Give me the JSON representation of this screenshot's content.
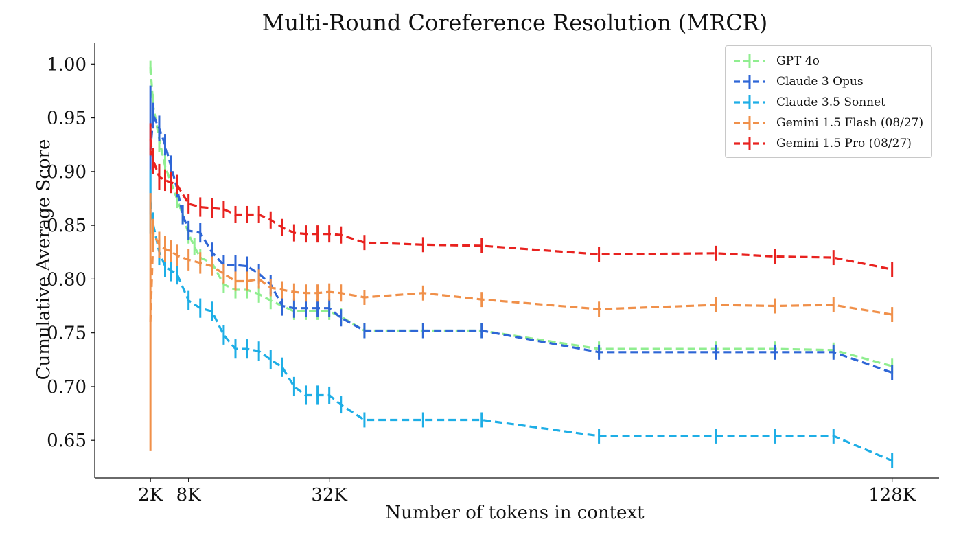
{
  "chart_data": {
    "type": "line",
    "title": "Multi-Round Coreference Resolution (MRCR)",
    "xlabel": "Number of tokens in context",
    "ylabel": "Cumulative Average Score",
    "xlim": [
      -8,
      136
    ],
    "ylim": [
      0.615,
      1.02
    ],
    "xticks": [
      {
        "value": 1.5,
        "label": "2K"
      },
      {
        "value": 8,
        "label": "8K"
      },
      {
        "value": 32,
        "label": "32K"
      },
      {
        "value": 128,
        "label": "128K"
      }
    ],
    "yticks": [
      {
        "value": 0.65,
        "label": "0.65"
      },
      {
        "value": 0.7,
        "label": "0.70"
      },
      {
        "value": 0.75,
        "label": "0.75"
      },
      {
        "value": 0.8,
        "label": "0.80"
      },
      {
        "value": 0.85,
        "label": "0.85"
      },
      {
        "value": 0.9,
        "label": "0.90"
      },
      {
        "value": 0.95,
        "label": "0.95"
      },
      {
        "value": 1.0,
        "label": "1.00"
      }
    ],
    "legend_position": "top-right",
    "series": [
      {
        "name": "GPT 4o",
        "color": "#90ee90",
        "x": [
          1.5,
          2,
          3,
          4,
          5,
          6,
          7,
          8,
          9,
          10,
          12,
          14,
          16,
          18,
          20,
          22,
          24,
          26,
          28,
          30,
          32,
          34,
          38,
          48,
          58,
          78,
          98,
          108,
          118,
          128
        ],
        "y": [
          0.997,
          0.96,
          0.93,
          0.905,
          0.89,
          0.875,
          0.86,
          0.842,
          0.83,
          0.82,
          0.815,
          0.795,
          0.79,
          0.79,
          0.786,
          0.78,
          0.775,
          0.77,
          0.77,
          0.77,
          0.77,
          0.765,
          0.752,
          0.752,
          0.752,
          0.735,
          0.735,
          0.735,
          0.734,
          0.719
        ],
        "err": [
          0.006,
          0.012,
          0.012,
          0.01,
          0.01,
          0.009,
          0.009,
          0.009,
          0.008,
          0.008,
          0.008,
          0.008,
          0.008,
          0.008,
          0.008,
          0.008,
          0.008,
          0.008,
          0.008,
          0.008,
          0.008,
          0.008,
          0.007,
          0.007,
          0.007,
          0.007,
          0.007,
          0.007,
          0.007,
          0.007
        ]
      },
      {
        "name": "Claude 3 Opus",
        "color": "#2e66d6",
        "x": [
          1.5,
          2,
          3,
          4,
          5,
          6,
          7,
          8,
          10,
          12,
          14,
          16,
          18,
          20,
          22,
          24,
          26,
          28,
          30,
          32,
          34,
          38,
          48,
          58,
          78,
          98,
          108,
          118,
          128
        ],
        "y": [
          0.92,
          0.952,
          0.94,
          0.925,
          0.905,
          0.885,
          0.86,
          0.845,
          0.843,
          0.825,
          0.813,
          0.813,
          0.812,
          0.805,
          0.795,
          0.775,
          0.773,
          0.773,
          0.773,
          0.773,
          0.764,
          0.752,
          0.752,
          0.752,
          0.732,
          0.732,
          0.732,
          0.732,
          0.713
        ],
        "err": [
          0.06,
          0.012,
          0.012,
          0.01,
          0.01,
          0.009,
          0.009,
          0.009,
          0.009,
          0.009,
          0.009,
          0.009,
          0.009,
          0.009,
          0.009,
          0.009,
          0.009,
          0.008,
          0.008,
          0.008,
          0.008,
          0.007,
          0.007,
          0.007,
          0.007,
          0.007,
          0.007,
          0.007,
          0.007
        ]
      },
      {
        "name": "Claude 3.5 Sonnet",
        "color": "#1eaee6",
        "x": [
          1.5,
          2,
          3,
          4,
          5,
          6,
          8,
          10,
          12,
          14,
          16,
          18,
          20,
          22,
          24,
          26,
          28,
          30,
          32,
          34,
          38,
          48,
          58,
          78,
          98,
          108,
          118,
          128
        ],
        "y": [
          0.872,
          0.85,
          0.825,
          0.812,
          0.808,
          0.805,
          0.78,
          0.773,
          0.77,
          0.748,
          0.735,
          0.735,
          0.733,
          0.725,
          0.718,
          0.7,
          0.692,
          0.692,
          0.692,
          0.683,
          0.669,
          0.669,
          0.669,
          0.654,
          0.654,
          0.654,
          0.654,
          0.631
        ],
        "err": [
          0.03,
          0.012,
          0.012,
          0.01,
          0.01,
          0.01,
          0.009,
          0.009,
          0.009,
          0.009,
          0.009,
          0.009,
          0.009,
          0.009,
          0.009,
          0.009,
          0.009,
          0.009,
          0.008,
          0.008,
          0.007,
          0.007,
          0.007,
          0.007,
          0.007,
          0.007,
          0.007,
          0.007
        ]
      },
      {
        "name": "Gemini 1.5 Flash (08/27)",
        "color": "#f0904a",
        "x": [
          1.5,
          2,
          3,
          4,
          5,
          6,
          8,
          10,
          12,
          14,
          16,
          18,
          20,
          22,
          24,
          26,
          28,
          30,
          32,
          34,
          38,
          48,
          58,
          78,
          98,
          108,
          118,
          128
        ],
        "y": [
          0.76,
          0.842,
          0.832,
          0.828,
          0.826,
          0.822,
          0.818,
          0.815,
          0.812,
          0.805,
          0.798,
          0.798,
          0.8,
          0.792,
          0.79,
          0.788,
          0.787,
          0.787,
          0.788,
          0.787,
          0.783,
          0.787,
          0.781,
          0.772,
          0.776,
          0.775,
          0.776,
          0.767
        ],
        "err": [
          0.12,
          0.014,
          0.012,
          0.012,
          0.01,
          0.01,
          0.01,
          0.01,
          0.009,
          0.009,
          0.009,
          0.009,
          0.009,
          0.008,
          0.008,
          0.008,
          0.008,
          0.008,
          0.008,
          0.008,
          0.007,
          0.007,
          0.007,
          0.007,
          0.007,
          0.007,
          0.007,
          0.007
        ]
      },
      {
        "name": "Gemini 1.5 Pro (08/27)",
        "color": "#e8221f",
        "x": [
          1.5,
          2,
          3,
          4,
          5,
          6,
          8,
          10,
          12,
          14,
          16,
          18,
          20,
          22,
          24,
          26,
          28,
          30,
          32,
          34,
          38,
          48,
          58,
          78,
          98,
          108,
          118,
          128
        ],
        "y": [
          0.93,
          0.91,
          0.895,
          0.892,
          0.89,
          0.888,
          0.87,
          0.867,
          0.866,
          0.865,
          0.86,
          0.86,
          0.86,
          0.855,
          0.848,
          0.843,
          0.842,
          0.842,
          0.842,
          0.841,
          0.834,
          0.832,
          0.831,
          0.823,
          0.824,
          0.821,
          0.82,
          0.809
        ],
        "err": [
          0.015,
          0.012,
          0.012,
          0.01,
          0.01,
          0.009,
          0.009,
          0.009,
          0.009,
          0.008,
          0.008,
          0.008,
          0.008,
          0.008,
          0.008,
          0.008,
          0.008,
          0.008,
          0.008,
          0.008,
          0.007,
          0.007,
          0.007,
          0.007,
          0.007,
          0.007,
          0.007,
          0.007
        ]
      }
    ]
  }
}
